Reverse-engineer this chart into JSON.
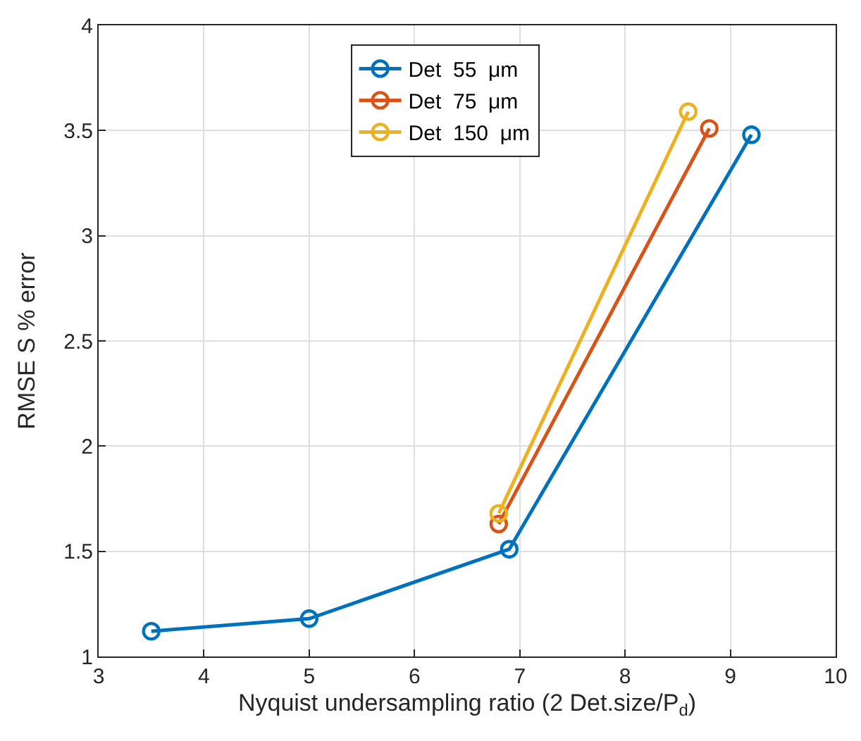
{
  "chart_data": {
    "type": "line",
    "xlabel": "Nyquist undersampling ratio (2 Det.size/P$_{d}$)",
    "ylabel": "RMSE S % error",
    "xlim": [
      3,
      10
    ],
    "xticks": [
      3,
      4,
      5,
      6,
      7,
      8,
      9,
      10
    ],
    "ylim": [
      1,
      4
    ],
    "yticks": [
      1,
      1.5,
      2,
      2.5,
      3,
      3.5,
      4
    ],
    "grid": true,
    "legend": "top",
    "marker": "circle",
    "line_style": "solid",
    "series": [
      {
        "name": "Det  55  μm",
        "color": "#0072bd",
        "x": [
          3.5,
          5,
          6.9,
          9.2
        ],
        "values": [
          1.12,
          1.18,
          1.51,
          3.48
        ]
      },
      {
        "name": "Det  75  μm",
        "color": "#d95319",
        "x": [
          6.8,
          8.8
        ],
        "values": [
          1.63,
          3.51
        ]
      },
      {
        "name": "Det  150  μm",
        "color": "#edb120",
        "x": [
          6.8,
          8.6
        ],
        "values": [
          1.68,
          3.59
        ]
      }
    ]
  }
}
